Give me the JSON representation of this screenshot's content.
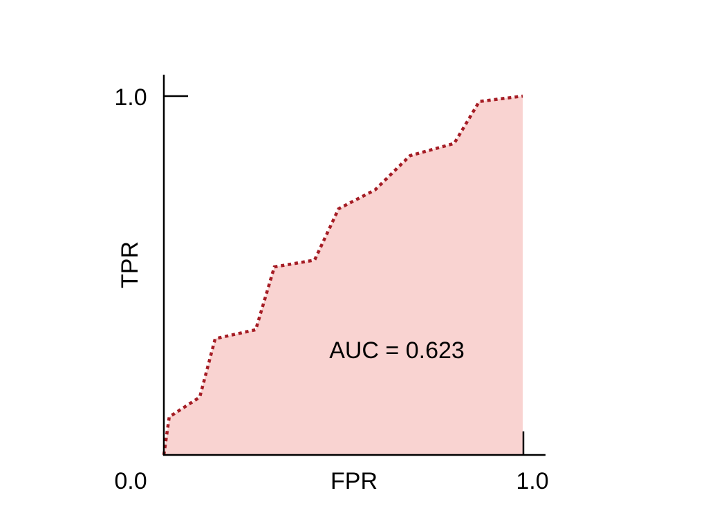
{
  "chart_data": {
    "type": "area",
    "title": "",
    "xlabel": "FPR",
    "ylabel": "TPR",
    "xlim": [
      0,
      1
    ],
    "ylim": [
      0,
      1
    ],
    "x_tick_labels": [
      "0.0",
      "1.0"
    ],
    "y_tick_labels": [
      "1.0"
    ],
    "grid": false,
    "annotation": "AUC = 0.623",
    "line_style": "dotted",
    "colors": {
      "line": "#a51c24",
      "fill": "#f9d3d1",
      "axis": "#000000"
    },
    "x": [
      0.0,
      0.015,
      0.1,
      0.143,
      0.256,
      0.308,
      0.42,
      0.487,
      0.589,
      0.686,
      0.809,
      0.879,
      1.0
    ],
    "y": [
      0.0,
      0.106,
      0.161,
      0.324,
      0.349,
      0.524,
      0.543,
      0.686,
      0.739,
      0.834,
      0.868,
      0.985,
      1.0
    ]
  }
}
